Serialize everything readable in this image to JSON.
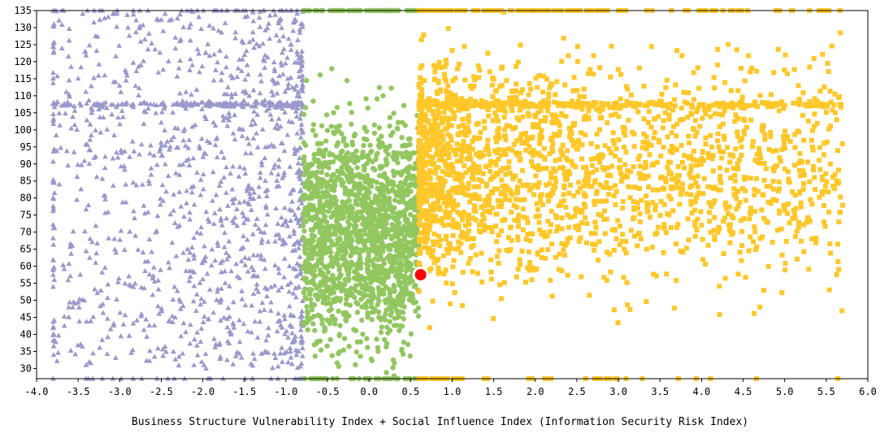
{
  "chart_data": {
    "type": "scatter",
    "title": "",
    "xlabel": "Business Structure Vulnerability Index + Social Influence Index (Information Security Risk Index)",
    "ylabel": "",
    "xlim": [
      -4.0,
      6.0
    ],
    "ylim": [
      27,
      135
    ],
    "x_ticks": [
      "-4.0",
      "-3.5",
      "-3.0",
      "-2.5",
      "-2.0",
      "-1.5",
      "-1.0",
      "-0.5",
      "0.0",
      "0.5",
      "1.0",
      "1.5",
      "2.0",
      "2.5",
      "3.0",
      "3.5",
      "4.0",
      "4.5",
      "5.0",
      "5.5",
      "6.0"
    ],
    "y_ticks": [
      "30",
      "35",
      "40",
      "45",
      "50",
      "55",
      "60",
      "65",
      "70",
      "75",
      "80",
      "85",
      "90",
      "95",
      "100",
      "105",
      "110",
      "115",
      "120",
      "125",
      "130",
      "135"
    ],
    "grid": false,
    "legend": "none",
    "series": [
      {
        "marker": "triangle",
        "color": "#9999cc",
        "x_range": [
          -3.8,
          -0.8
        ],
        "y_range": [
          27,
          135
        ],
        "approx_count": 1400
      },
      {
        "marker": "circle",
        "color": "#92c760",
        "x_range": [
          -0.8,
          0.6
        ],
        "y_range": [
          27,
          135
        ],
        "approx_count": 1800
      },
      {
        "marker": "square",
        "color": "#ffc729",
        "x_range": [
          0.6,
          5.7
        ],
        "y_range": [
          27,
          135
        ],
        "approx_count": 2500
      }
    ],
    "highlight": {
      "x": 0.62,
      "y": 57.5,
      "color": "#ff0000"
    }
  }
}
